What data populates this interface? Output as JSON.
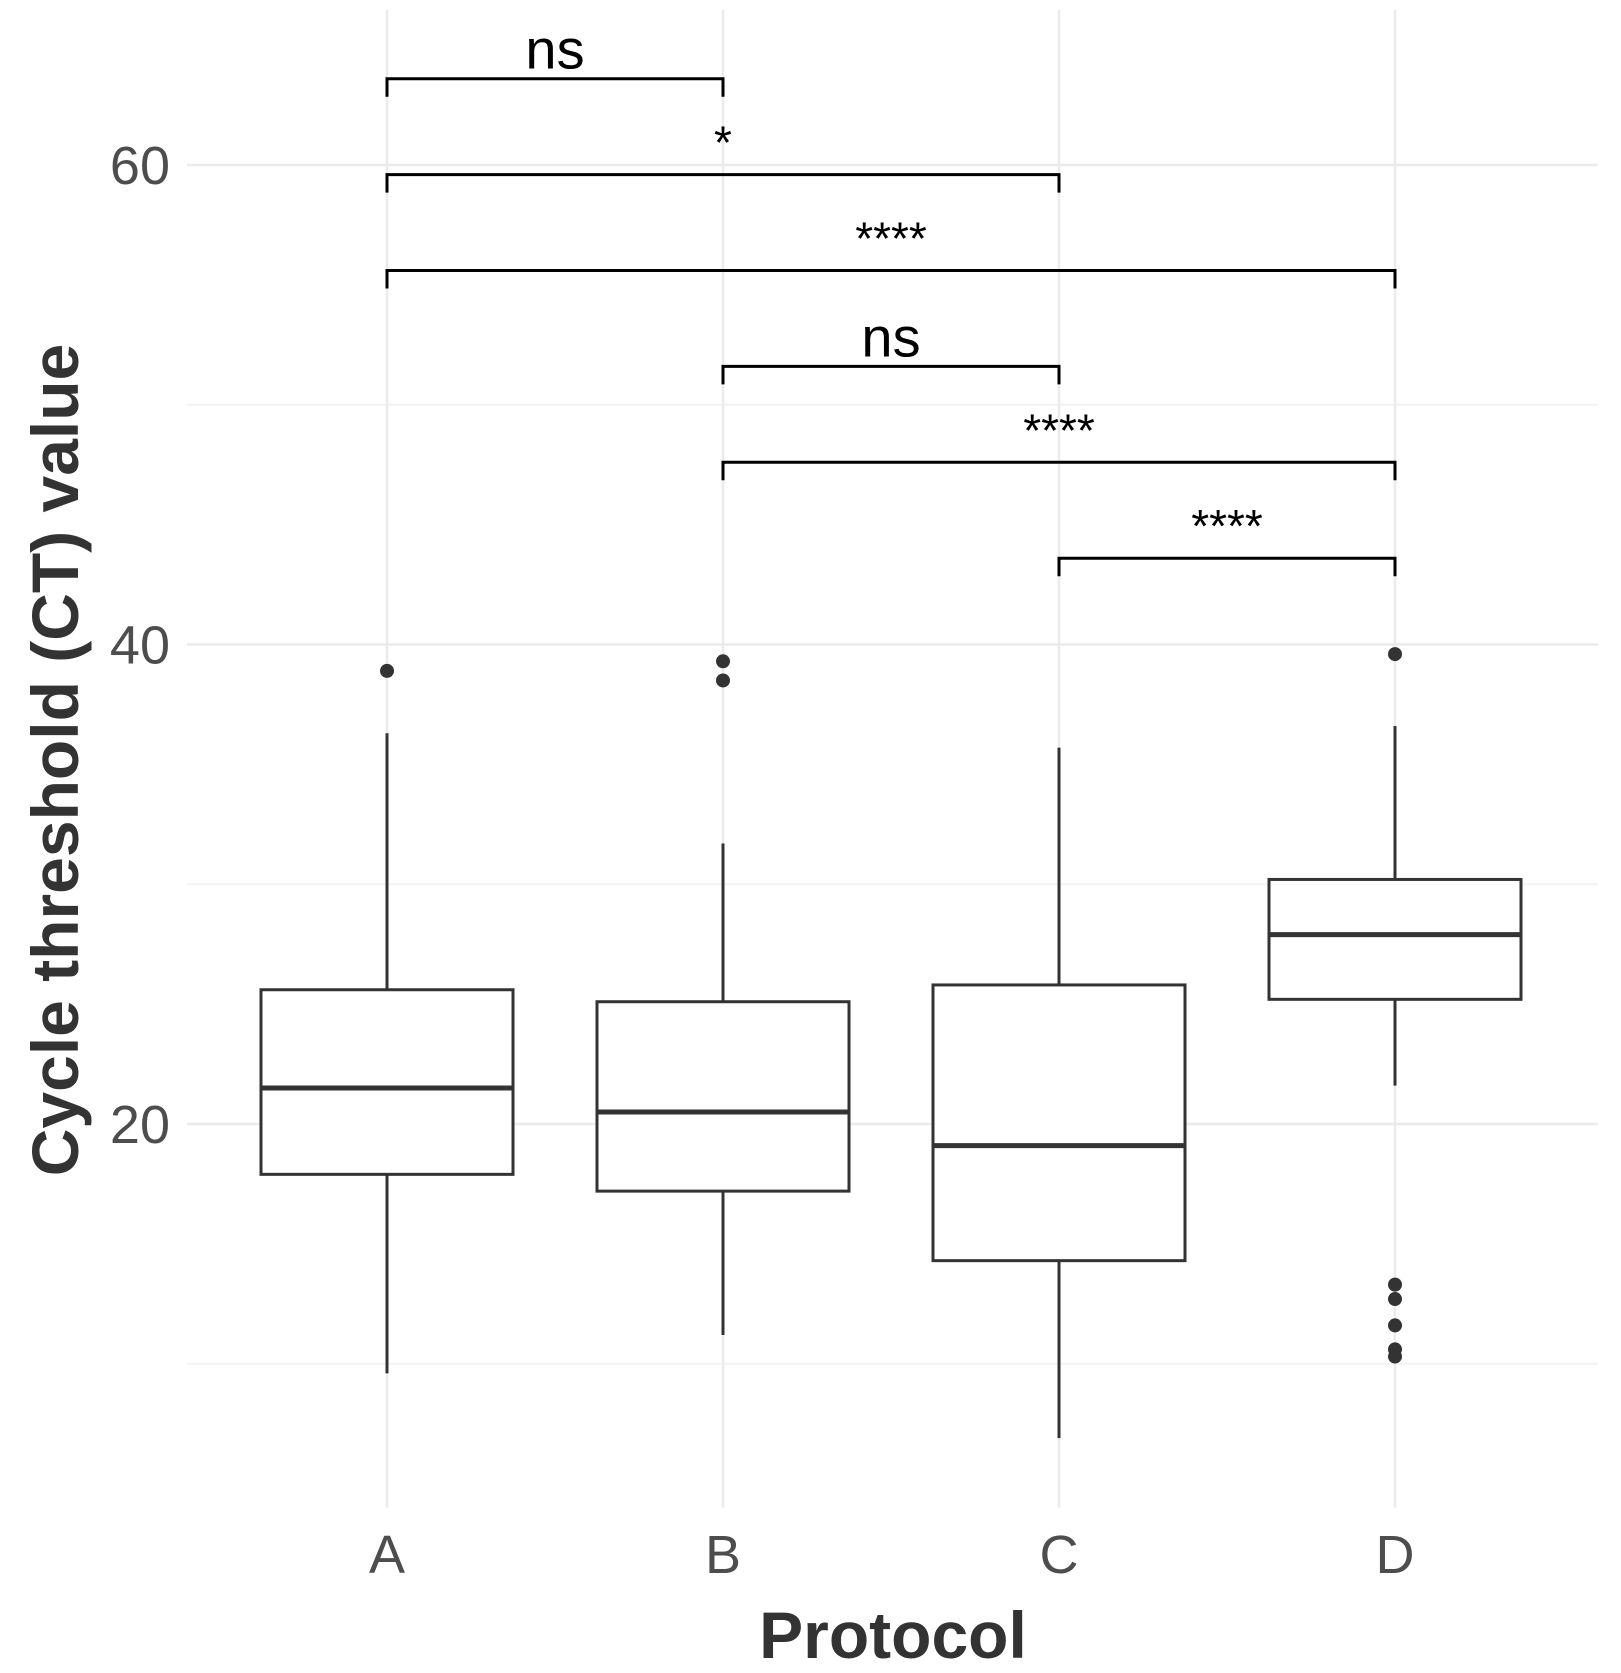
{
  "chart_data": {
    "type": "boxplot",
    "title": "",
    "xlabel": "Protocol",
    "ylabel": "Cycle threshold (CT) value",
    "ylim": [
      4,
      66
    ],
    "y_major_ticks": [
      20,
      40,
      60
    ],
    "y_minor_ticks": [
      10,
      30,
      50
    ],
    "grid": true,
    "categories": [
      "A",
      "B",
      "C",
      "D"
    ],
    "boxes": [
      {
        "name": "A",
        "whisker_low": 9.6,
        "q1": 17.9,
        "median": 21.5,
        "q3": 25.6,
        "whisker_high": 36.3,
        "outliers": [
          38.9
        ]
      },
      {
        "name": "B",
        "whisker_low": 11.2,
        "q1": 17.2,
        "median": 20.5,
        "q3": 25.1,
        "whisker_high": 31.7,
        "outliers": [
          39.3,
          38.5
        ]
      },
      {
        "name": "C",
        "whisker_low": 6.9,
        "q1": 14.3,
        "median": 19.1,
        "q3": 25.8,
        "whisker_high": 35.7,
        "outliers": []
      },
      {
        "name": "D",
        "whisker_low": 21.6,
        "q1": 25.2,
        "median": 27.9,
        "q3": 30.2,
        "whisker_high": 36.6,
        "outliers": [
          39.6,
          13.3,
          12.7,
          11.6,
          10.6,
          10.3
        ]
      }
    ],
    "comparisons": [
      {
        "from": "A",
        "to": "B",
        "label": "ns",
        "y": 63.6
      },
      {
        "from": "A",
        "to": "C",
        "label": "*",
        "y": 59.6
      },
      {
        "from": "A",
        "to": "D",
        "label": "****",
        "y": 55.6
      },
      {
        "from": "B",
        "to": "C",
        "label": "ns",
        "y": 51.6
      },
      {
        "from": "B",
        "to": "D",
        "label": "****",
        "y": 47.6
      },
      {
        "from": "C",
        "to": "D",
        "label": "****",
        "y": 43.6
      }
    ]
  }
}
